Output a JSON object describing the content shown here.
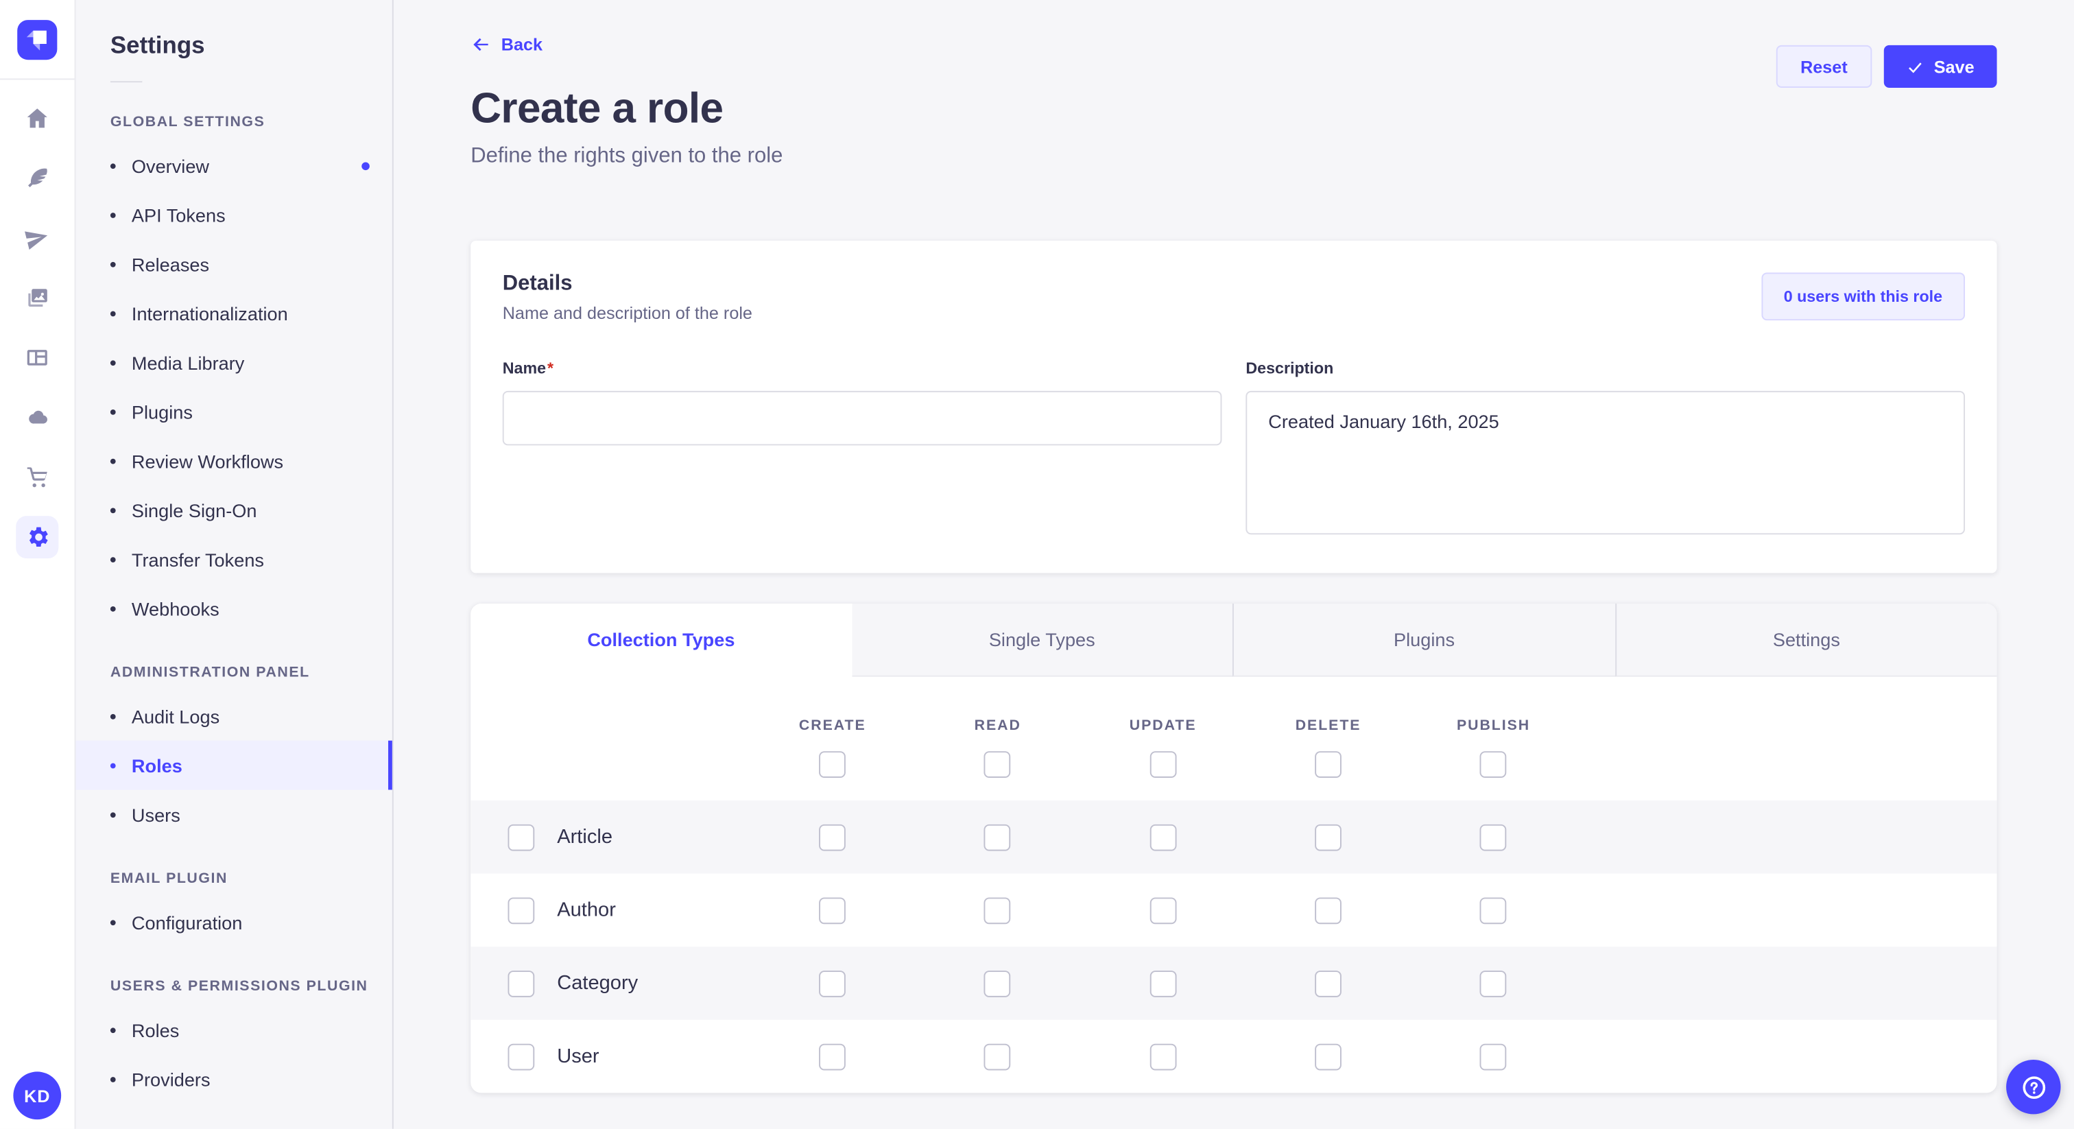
{
  "colors": {
    "primary": "#4945ff",
    "primary_bg": "#f0f0ff",
    "neutral_bg": "#f6f6f9",
    "text_dark": "#32324d",
    "text_gray": "#666687",
    "danger": "#d02b20"
  },
  "rail": {
    "icons": [
      "home",
      "feather",
      "paper-plane",
      "media",
      "layout",
      "cloud",
      "cart",
      "gear"
    ],
    "active_icon": "gear",
    "avatar_initials": "KD"
  },
  "subnav": {
    "title": "Settings",
    "sections": [
      {
        "label": "Global Settings",
        "items": [
          {
            "label": "Overview",
            "notification": true
          },
          {
            "label": "API Tokens"
          },
          {
            "label": "Releases"
          },
          {
            "label": "Internationalization"
          },
          {
            "label": "Media Library"
          },
          {
            "label": "Plugins"
          },
          {
            "label": "Review Workflows"
          },
          {
            "label": "Single Sign-On"
          },
          {
            "label": "Transfer Tokens"
          },
          {
            "label": "Webhooks"
          }
        ]
      },
      {
        "label": "Administration Panel",
        "items": [
          {
            "label": "Audit Logs"
          },
          {
            "label": "Roles",
            "active": true
          },
          {
            "label": "Users"
          }
        ]
      },
      {
        "label": "Email Plugin",
        "items": [
          {
            "label": "Configuration"
          }
        ]
      },
      {
        "label": "Users & Permissions Plugin",
        "items": [
          {
            "label": "Roles"
          },
          {
            "label": "Providers"
          }
        ]
      }
    ]
  },
  "header": {
    "back_label": "Back",
    "title": "Create a role",
    "subtitle": "Define the rights given to the role",
    "reset_label": "Reset",
    "save_label": "Save"
  },
  "details": {
    "title": "Details",
    "subtitle": "Name and description of the role",
    "users_badge": "0 users with this role",
    "name_label": "Name",
    "required_mark": "*",
    "name_value": "",
    "description_label": "Description",
    "description_value": "Created January 16th, 2025"
  },
  "permissions": {
    "tabs": [
      {
        "label": "Collection Types",
        "active": true
      },
      {
        "label": "Single Types"
      },
      {
        "label": "Plugins"
      },
      {
        "label": "Settings"
      }
    ],
    "columns": [
      "Create",
      "Read",
      "Update",
      "Delete",
      "Publish"
    ],
    "rows": [
      {
        "label": "Article",
        "checked": [
          false,
          false,
          false,
          false,
          false
        ]
      },
      {
        "label": "Author",
        "checked": [
          false,
          false,
          false,
          false,
          false
        ]
      },
      {
        "label": "Category",
        "checked": [
          false,
          false,
          false,
          false,
          false
        ]
      },
      {
        "label": "User",
        "checked": [
          false,
          false,
          false,
          false,
          false
        ]
      }
    ],
    "header_checked": [
      false,
      false,
      false,
      false,
      false
    ]
  },
  "help": {
    "tooltip": "Help"
  }
}
